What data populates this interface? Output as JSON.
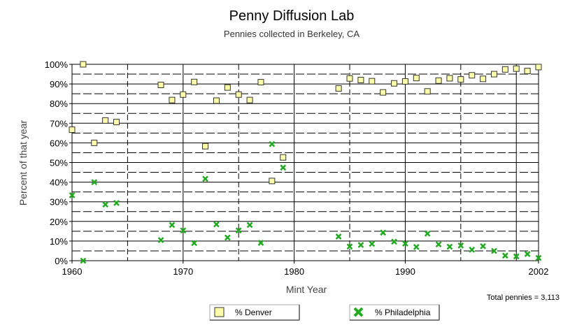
{
  "chart_data": {
    "type": "scatter",
    "title": "Penny Diffusion Lab",
    "subtitle": "Pennies collected in Berkeley, CA",
    "xlabel": "Mint Year",
    "ylabel": "Percent of that year",
    "xlim": [
      1960,
      2002
    ],
    "ylim": [
      0,
      100
    ],
    "x_ticks": [
      "1960",
      "1970",
      "1980",
      "1990",
      "2002"
    ],
    "x_tick_values": [
      1960,
      1970,
      1980,
      1990,
      2002
    ],
    "y_ticks": [
      "0%",
      "10%",
      "20%",
      "30%",
      "40%",
      "50%",
      "60%",
      "70%",
      "80%",
      "90%",
      "100%"
    ],
    "y_tick_values": [
      0,
      10,
      20,
      30,
      40,
      50,
      60,
      70,
      80,
      90,
      100
    ],
    "grid": true,
    "legend_position": "bottom",
    "note": "Total pennies = 3,113",
    "series": [
      {
        "name": "% Denver",
        "marker": "square",
        "color": "#ffffaa",
        "stroke": "#333333",
        "points": [
          [
            1960,
            66.7
          ],
          [
            1961,
            100
          ],
          [
            1962,
            60
          ],
          [
            1963,
            71.4
          ],
          [
            1964,
            70.6
          ],
          [
            1968,
            89.5
          ],
          [
            1969,
            81.8
          ],
          [
            1970,
            84.6
          ],
          [
            1971,
            91
          ],
          [
            1972,
            58.3
          ],
          [
            1973,
            81.5
          ],
          [
            1974,
            88.2
          ],
          [
            1975,
            84.6
          ],
          [
            1976,
            81.8
          ],
          [
            1977,
            90.9
          ],
          [
            1978,
            40.6
          ],
          [
            1979,
            52.6
          ],
          [
            1984,
            87.7
          ],
          [
            1985,
            92.8
          ],
          [
            1986,
            92
          ],
          [
            1987,
            91.4
          ],
          [
            1988,
            85.7
          ],
          [
            1989,
            90.3
          ],
          [
            1990,
            91.3
          ],
          [
            1991,
            93
          ],
          [
            1992,
            86.2
          ],
          [
            1993,
            91.7
          ],
          [
            1994,
            92.9
          ],
          [
            1995,
            92.3
          ],
          [
            1996,
            94.4
          ],
          [
            1997,
            92.6
          ],
          [
            1998,
            95
          ],
          [
            1999,
            97.4
          ],
          [
            2000,
            97.8
          ],
          [
            2001,
            96.6
          ],
          [
            2002,
            98.6
          ]
        ]
      },
      {
        "name": "% Philadelphia",
        "marker": "x",
        "color": "#22aa22",
        "stroke": "#006600",
        "points": [
          [
            1960,
            33.3
          ],
          [
            1961,
            0
          ],
          [
            1962,
            40
          ],
          [
            1963,
            28.6
          ],
          [
            1964,
            29.4
          ],
          [
            1968,
            10.5
          ],
          [
            1969,
            18.2
          ],
          [
            1970,
            15.4
          ],
          [
            1971,
            9
          ],
          [
            1972,
            41.7
          ],
          [
            1973,
            18.5
          ],
          [
            1974,
            11.8
          ],
          [
            1975,
            15.4
          ],
          [
            1976,
            18.2
          ],
          [
            1977,
            9.1
          ],
          [
            1978,
            59.4
          ],
          [
            1979,
            47.4
          ],
          [
            1984,
            12.3
          ],
          [
            1985,
            7.2
          ],
          [
            1986,
            8
          ],
          [
            1987,
            8.6
          ],
          [
            1988,
            14.3
          ],
          [
            1989,
            9.7
          ],
          [
            1990,
            8.7
          ],
          [
            1991,
            7
          ],
          [
            1992,
            13.8
          ],
          [
            1993,
            8.3
          ],
          [
            1994,
            7.1
          ],
          [
            1995,
            7.7
          ],
          [
            1996,
            5.6
          ],
          [
            1997,
            7.4
          ],
          [
            1998,
            5
          ],
          [
            1999,
            2.6
          ],
          [
            2000,
            2.2
          ],
          [
            2001,
            3.4
          ],
          [
            2002,
            1.4
          ]
        ]
      }
    ]
  }
}
